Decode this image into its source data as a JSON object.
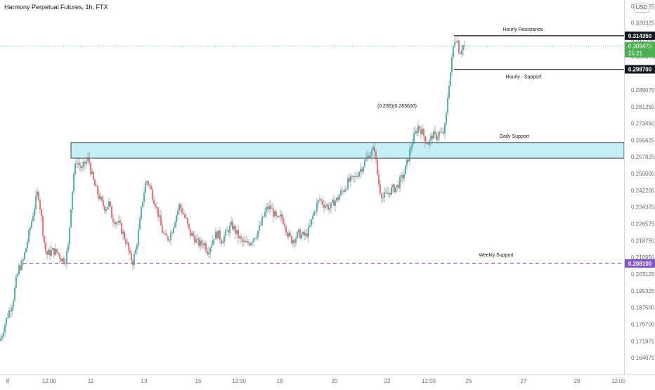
{
  "header": {
    "title": "Harmony Perpetual Futures, 1h, FTX",
    "currency_button": "USD"
  },
  "colors": {
    "up": "#26a69a",
    "down": "#ef5350",
    "support_zone_fill": "#c7f0f5",
    "weekly_line": "#7e57c2",
    "price_badge": "#4caf50",
    "label_bg": "#131722"
  },
  "chart_data": {
    "type": "candlestick",
    "symbol": "Harmony Perpetual Futures",
    "interval": "1h",
    "exchange": "FTX",
    "ylim": [
      0.1605,
      0.3284
    ],
    "y_axis_ticks": [
      "0.328125",
      "0.320325",
      "0.312500",
      "0.304675",
      "0.297875",
      "0.289075",
      "0.281250",
      "0.273450",
      "0.265625",
      "0.257825",
      "0.250000",
      "0.242200",
      "0.234375",
      "0.226575",
      "0.218750",
      "0.210950",
      "0.203125",
      "0.195325",
      "0.187500",
      "0.179700",
      "0.171875",
      "0.164075"
    ],
    "x_axis_ticks": [
      "8",
      "12:00",
      "11",
      "13",
      "15",
      "12:00",
      "18",
      "20",
      "22",
      "12:00",
      "25",
      "27",
      "29",
      "12:00"
    ],
    "levels": [
      {
        "name": "Hourly Resistance",
        "price": 0.31435,
        "label": "0.314350",
        "style": "solid-black"
      },
      {
        "name": "Hourly - Support",
        "price": 0.2987,
        "label": "0.298700",
        "style": "solid-black"
      },
      {
        "name": "Weekly Support",
        "price": 0.2081,
        "label": "0.208100",
        "style": "dashed-purple"
      }
    ],
    "zones": [
      {
        "name": "Daily Support",
        "top": 0.2645,
        "bottom": 0.2572
      }
    ],
    "annotations": [
      {
        "text": "(0.236)(0.283600)"
      }
    ],
    "current_price": {
      "price": 0.309475,
      "label": "0.309475",
      "countdown": "25:21"
    },
    "price_path": [
      [
        0,
        0.172
      ],
      [
        8,
        0.181
      ],
      [
        13,
        0.186
      ],
      [
        18,
        0.19
      ],
      [
        23,
        0.2
      ],
      [
        27,
        0.206
      ],
      [
        32,
        0.208
      ],
      [
        36,
        0.214
      ],
      [
        40,
        0.22
      ],
      [
        45,
        0.228
      ],
      [
        50,
        0.236
      ],
      [
        54,
        0.242
      ],
      [
        58,
        0.232
      ],
      [
        62,
        0.22
      ],
      [
        66,
        0.212
      ],
      [
        70,
        0.213
      ],
      [
        76,
        0.214
      ],
      [
        82,
        0.213
      ],
      [
        88,
        0.21
      ],
      [
        93,
        0.21
      ],
      [
        97,
        0.216
      ],
      [
        101,
        0.235
      ],
      [
        105,
        0.25
      ],
      [
        109,
        0.256
      ],
      [
        113,
        0.254
      ],
      [
        117,
        0.252
      ],
      [
        121,
        0.255
      ],
      [
        126,
        0.257
      ],
      [
        130,
        0.25
      ],
      [
        135,
        0.244
      ],
      [
        140,
        0.24
      ],
      [
        145,
        0.236
      ],
      [
        150,
        0.234
      ],
      [
        155,
        0.236
      ],
      [
        160,
        0.229
      ],
      [
        165,
        0.228
      ],
      [
        170,
        0.226
      ],
      [
        175,
        0.222
      ],
      [
        180,
        0.218
      ],
      [
        185,
        0.211
      ],
      [
        189,
        0.209
      ],
      [
        193,
        0.214
      ],
      [
        198,
        0.225
      ],
      [
        203,
        0.238
      ],
      [
        208,
        0.247
      ],
      [
        212,
        0.245
      ],
      [
        217,
        0.24
      ],
      [
        221,
        0.236
      ],
      [
        226,
        0.23
      ],
      [
        230,
        0.224
      ],
      [
        235,
        0.22
      ],
      [
        240,
        0.22
      ],
      [
        245,
        0.224
      ],
      [
        250,
        0.23
      ],
      [
        255,
        0.235
      ],
      [
        260,
        0.232
      ],
      [
        265,
        0.228
      ],
      [
        270,
        0.222
      ],
      [
        275,
        0.221
      ],
      [
        280,
        0.218
      ],
      [
        285,
        0.217
      ],
      [
        290,
        0.218
      ],
      [
        295,
        0.214
      ],
      [
        300,
        0.217
      ],
      [
        305,
        0.221
      ],
      [
        310,
        0.222
      ],
      [
        315,
        0.219
      ],
      [
        320,
        0.221
      ],
      [
        325,
        0.224
      ],
      [
        330,
        0.226
      ],
      [
        335,
        0.223
      ],
      [
        340,
        0.22
      ],
      [
        345,
        0.218
      ],
      [
        350,
        0.217
      ],
      [
        355,
        0.218
      ],
      [
        360,
        0.22
      ],
      [
        365,
        0.222
      ],
      [
        370,
        0.225
      ],
      [
        375,
        0.23
      ],
      [
        380,
        0.234
      ],
      [
        385,
        0.234
      ],
      [
        390,
        0.231
      ],
      [
        395,
        0.228
      ],
      [
        400,
        0.23
      ],
      [
        405,
        0.227
      ],
      [
        410,
        0.221
      ],
      [
        415,
        0.219
      ],
      [
        420,
        0.22
      ],
      [
        425,
        0.222
      ],
      [
        430,
        0.221
      ],
      [
        435,
        0.221
      ],
      [
        440,
        0.224
      ],
      [
        445,
        0.23
      ],
      [
        450,
        0.235
      ],
      [
        455,
        0.238
      ],
      [
        460,
        0.236
      ],
      [
        465,
        0.235
      ],
      [
        470,
        0.234
      ],
      [
        475,
        0.237
      ],
      [
        480,
        0.238
      ],
      [
        485,
        0.241
      ],
      [
        490,
        0.243
      ],
      [
        495,
        0.246
      ],
      [
        500,
        0.247
      ],
      [
        505,
        0.248
      ],
      [
        510,
        0.251
      ],
      [
        515,
        0.253
      ],
      [
        520,
        0.256
      ],
      [
        525,
        0.259
      ],
      [
        530,
        0.26
      ],
      [
        533,
        0.262
      ],
      [
        536,
        0.252
      ],
      [
        540,
        0.243
      ],
      [
        545,
        0.239
      ],
      [
        550,
        0.24
      ],
      [
        555,
        0.242
      ],
      [
        560,
        0.243
      ],
      [
        565,
        0.244
      ],
      [
        570,
        0.247
      ],
      [
        575,
        0.25
      ],
      [
        580,
        0.256
      ],
      [
        585,
        0.263
      ],
      [
        590,
        0.268
      ],
      [
        595,
        0.272
      ],
      [
        600,
        0.27
      ],
      [
        605,
        0.266
      ],
      [
        610,
        0.264
      ],
      [
        615,
        0.268
      ],
      [
        620,
        0.267
      ],
      [
        625,
        0.269
      ],
      [
        630,
        0.268
      ],
      [
        634,
        0.273
      ],
      [
        638,
        0.29
      ],
      [
        642,
        0.3
      ],
      [
        646,
        0.312
      ],
      [
        650,
        0.314
      ],
      [
        654,
        0.306
      ],
      [
        658,
        0.31
      ],
      [
        661,
        0.3095
      ]
    ]
  }
}
